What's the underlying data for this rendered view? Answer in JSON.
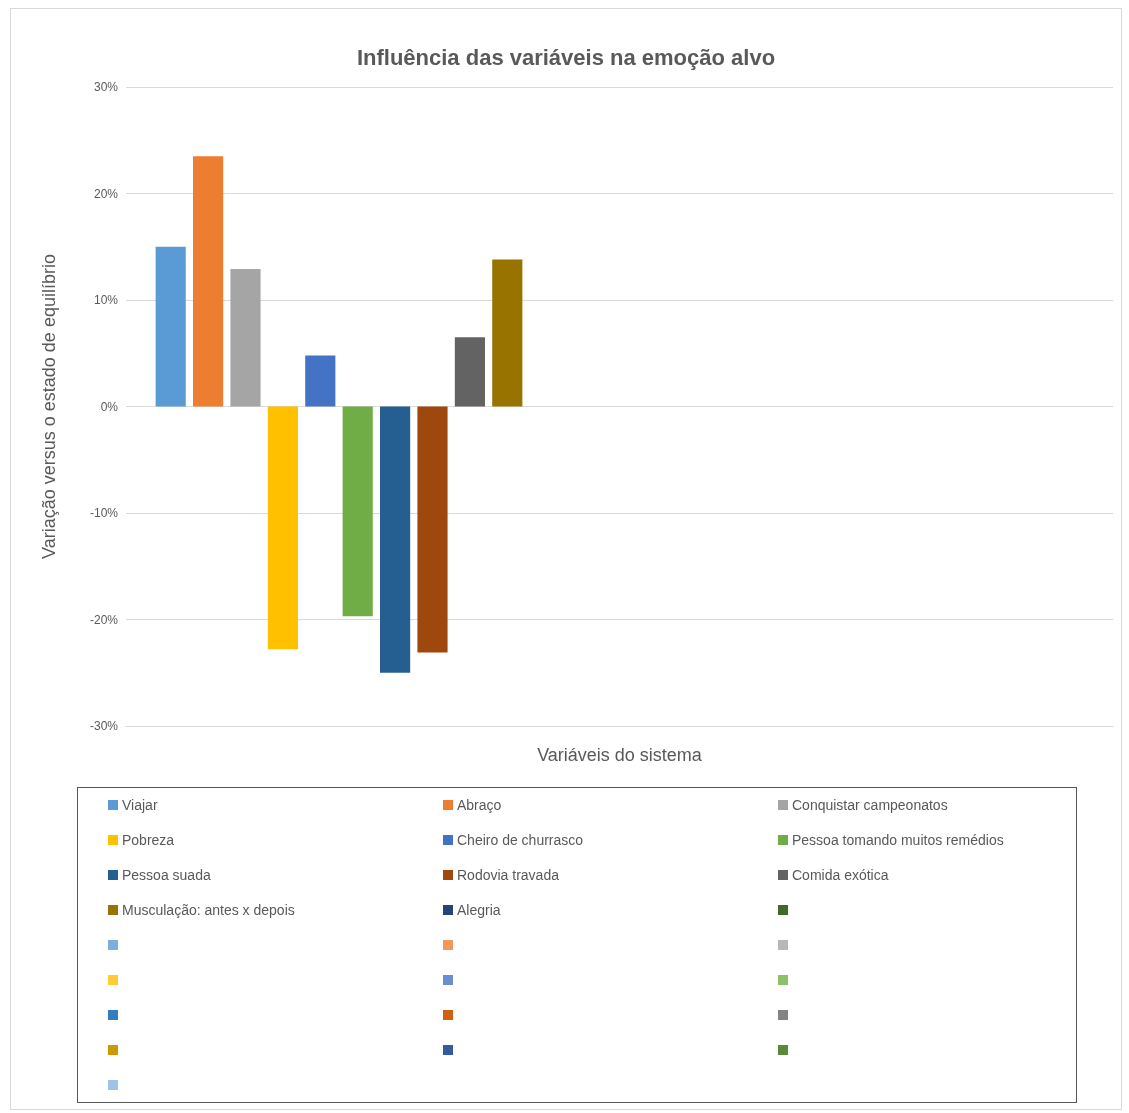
{
  "chart_data": {
    "type": "bar",
    "title": "Influência das variáveis na emoção alvo",
    "xlabel": "Variáveis do sistema",
    "ylabel": "Variação versus o estado de equilíbrio",
    "categories": [
      null
    ],
    "series": [
      {
        "name": "Viajar",
        "color": "#5b9bd5",
        "values": [
          15
        ]
      },
      {
        "name": "Abraço",
        "color": "#ed7d31",
        "values": [
          23.5
        ]
      },
      {
        "name": "Conquistar campeonatos",
        "color": "#a5a5a5",
        "values": [
          12.9
        ]
      },
      {
        "name": "Pobreza",
        "color": "#ffc000",
        "values": [
          -22.8
        ]
      },
      {
        "name": "Cheiro de churrasco",
        "color": "#4472c4",
        "values": [
          4.8
        ]
      },
      {
        "name": "Pessoa tomando muitos remédios",
        "color": "#70ad47",
        "values": [
          -19.7
        ]
      },
      {
        "name": "Pessoa suada",
        "color": "#255e91",
        "values": [
          -25
        ]
      },
      {
        "name": "Rodovia travada",
        "color": "#9e480e",
        "values": [
          -23.1
        ]
      },
      {
        "name": "Comida exótica",
        "color": "#636363",
        "values": [
          6.5
        ]
      },
      {
        "name": "Musculação: antes x depois",
        "color": "#997300",
        "values": [
          13.8
        ]
      },
      {
        "name": "Alegria",
        "color": "#264478",
        "values": [
          null
        ]
      },
      {
        "color": "#43682b",
        "values": [
          null
        ]
      },
      {
        "color": "#7cafdd",
        "values": [
          null
        ]
      },
      {
        "color": "#f1975a",
        "values": [
          null
        ]
      },
      {
        "color": "#b7b7b7",
        "values": [
          null
        ]
      },
      {
        "color": "#ffcd33",
        "values": [
          null
        ]
      },
      {
        "color": "#698ed0",
        "values": [
          null
        ]
      },
      {
        "color": "#8cc168",
        "values": [
          null
        ]
      },
      {
        "color": "#327dc2",
        "values": [
          null
        ]
      },
      {
        "color": "#d26012",
        "values": [
          null
        ]
      },
      {
        "color": "#848484",
        "values": [
          null
        ]
      },
      {
        "color": "#cc9a00",
        "values": [
          null
        ]
      },
      {
        "color": "#335aa1",
        "values": [
          null
        ]
      },
      {
        "color": "#5a8a39",
        "values": [
          null
        ]
      },
      {
        "color": "#9dc3e6",
        "values": [
          null
        ]
      }
    ],
    "ylim": [
      -30,
      30
    ],
    "yticks": [
      {
        "value": -30,
        "label": "-30%"
      },
      {
        "value": -20,
        "label": "-20%"
      },
      {
        "value": -10,
        "label": "-10%"
      },
      {
        "value": 0,
        "label": "0%"
      },
      {
        "value": 10,
        "label": "10%"
      },
      {
        "value": 20,
        "label": "20%"
      },
      {
        "value": 30,
        "label": "30%"
      }
    ],
    "grid": "y",
    "legend": "bottom"
  }
}
